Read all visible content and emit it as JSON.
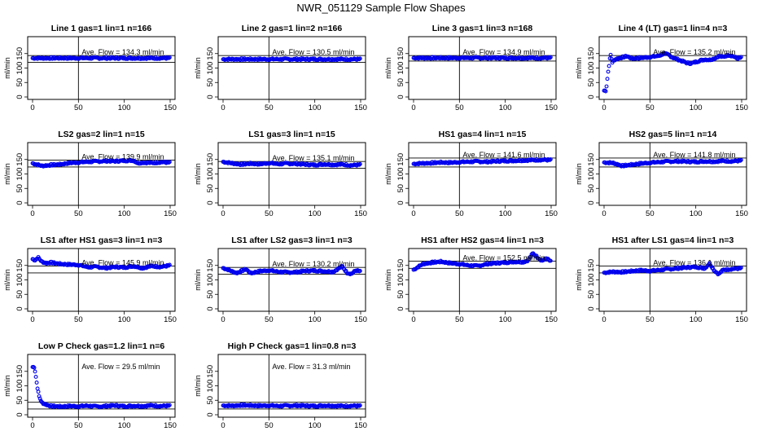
{
  "title": "NWR_051129  Sample Flow Shapes",
  "chart_data": [
    {
      "type": "scatter",
      "title": "Line 1 gas=1 lin=1 n=166",
      "ylabel": "ml/min",
      "xlim": [
        0,
        150
      ],
      "ylim": [
        0,
        200
      ],
      "xticks": [
        0,
        50,
        100,
        150
      ],
      "yticks": [
        0,
        50,
        100,
        150
      ],
      "ref_lines_y": [
        120,
        143
      ],
      "vline_x": 50,
      "ave_flow_label": "Ave. Flow =  134.3  ml/min",
      "series": [
        {
          "x": [
            0,
            150
          ],
          "y": [
            134.3,
            134.3
          ]
        }
      ]
    },
    {
      "type": "scatter",
      "title": "Line 2 gas=1 lin=2 n=166",
      "ylabel": "ml/min",
      "xlim": [
        0,
        150
      ],
      "ylim": [
        0,
        200
      ],
      "xticks": [
        0,
        50,
        100,
        150
      ],
      "yticks": [
        0,
        50,
        100,
        150
      ],
      "ref_lines_y": [
        120,
        143
      ],
      "vline_x": 50,
      "ave_flow_label": "Ave. Flow =  130.5  ml/min",
      "series": [
        {
          "x": [
            0,
            150
          ],
          "y": [
            130.5,
            130.5
          ]
        }
      ]
    },
    {
      "type": "scatter",
      "title": "Line 3 gas=1 lin=3 n=168",
      "ylabel": "ml/min",
      "xlim": [
        0,
        150
      ],
      "ylim": [
        0,
        200
      ],
      "xticks": [
        0,
        50,
        100,
        150
      ],
      "yticks": [
        0,
        50,
        100,
        150
      ],
      "ref_lines_y": [
        124,
        143
      ],
      "vline_x": 50,
      "ave_flow_label": "Ave. Flow =  134.9  ml/min",
      "series": [
        {
          "x": [
            0,
            150
          ],
          "y": [
            134.9,
            134.9
          ]
        }
      ]
    },
    {
      "type": "scatter",
      "title": "Line 4 (LT) gas=1 lin=4 n=3",
      "ylabel": "ml/min",
      "xlim": [
        0,
        150
      ],
      "ylim": [
        0,
        200
      ],
      "xticks": [
        0,
        50,
        100,
        150
      ],
      "yticks": [
        0,
        50,
        100,
        150
      ],
      "ref_lines_y": [
        124,
        143
      ],
      "vline_x": 50,
      "ave_flow_label": "Ave. Flow =  135.2  ml/min",
      "series": [
        {
          "x": [
            2,
            3,
            4,
            5,
            7,
            9,
            12,
            15,
            20,
            25,
            30,
            40,
            50,
            60,
            65,
            70,
            75,
            80,
            85,
            90,
            95,
            100,
            105,
            110,
            115,
            120,
            125,
            130,
            135,
            140,
            145,
            150
          ],
          "y": [
            22,
            45,
            75,
            100,
            148,
            120,
            130,
            133,
            137,
            141,
            133,
            135,
            138,
            142,
            150,
            146,
            136,
            130,
            124,
            118,
            116,
            121,
            126,
            130,
            128,
            133,
            141,
            138,
            145,
            142,
            133,
            136
          ]
        }
      ]
    },
    {
      "type": "scatter",
      "title": "LS2 gas=2 lin=1 n=15",
      "ylabel": "ml/min",
      "xlim": [
        0,
        150
      ],
      "ylim": [
        0,
        200
      ],
      "xticks": [
        0,
        50,
        100,
        150
      ],
      "yticks": [
        0,
        50,
        100,
        150
      ],
      "ref_lines_y": [
        124,
        148
      ],
      "vline_x": 50,
      "ave_flow_label": "Ave. Flow =  139.9  ml/min",
      "series": [
        {
          "x": [
            0,
            10,
            20,
            30,
            40,
            50,
            60,
            70,
            80,
            90,
            100,
            110,
            115,
            120,
            130,
            140,
            150
          ],
          "y": [
            137,
            128,
            131,
            133,
            138,
            140,
            142,
            143,
            145,
            144,
            146,
            147,
            137,
            140,
            138,
            141,
            139
          ]
        }
      ]
    },
    {
      "type": "scatter",
      "title": "LS1 gas=3 lin=1 n=15",
      "ylabel": "ml/min",
      "xlim": [
        0,
        150
      ],
      "ylim": [
        0,
        200
      ],
      "xticks": [
        0,
        50,
        100,
        150
      ],
      "yticks": [
        0,
        50,
        100,
        150
      ],
      "ref_lines_y": [
        120,
        143
      ],
      "vline_x": 50,
      "ave_flow_label": "Ave. Flow =  135.1  ml/min",
      "series": [
        {
          "x": [
            0,
            10,
            20,
            30,
            40,
            50,
            60,
            70,
            80,
            90,
            100,
            110,
            120,
            130,
            140,
            150
          ],
          "y": [
            142,
            137,
            133,
            136,
            134,
            138,
            134,
            136,
            135,
            133,
            131,
            134,
            132,
            133,
            130,
            132
          ]
        }
      ]
    },
    {
      "type": "scatter",
      "title": "HS1 gas=4 lin=1 n=15",
      "ylabel": "ml/min",
      "xlim": [
        0,
        150
      ],
      "ylim": [
        0,
        200
      ],
      "xticks": [
        0,
        50,
        100,
        150
      ],
      "yticks": [
        0,
        50,
        100,
        150
      ],
      "ref_lines_y": [
        124,
        155
      ],
      "vline_x": 50,
      "ave_flow_label": "Ave. Flow =  141.6  ml/min",
      "series": [
        {
          "x": [
            0,
            10,
            20,
            30,
            40,
            50,
            60,
            70,
            80,
            90,
            100,
            110,
            120,
            130,
            140,
            150
          ],
          "y": [
            135,
            137,
            138,
            140,
            139,
            141,
            142,
            143,
            142,
            144,
            145,
            146,
            147,
            148,
            149,
            148
          ]
        }
      ]
    },
    {
      "type": "scatter",
      "title": "HS2 gas=5 lin=1 n=14",
      "ylabel": "ml/min",
      "xlim": [
        0,
        150
      ],
      "ylim": [
        0,
        200
      ],
      "xticks": [
        0,
        50,
        100,
        150
      ],
      "yticks": [
        0,
        50,
        100,
        150
      ],
      "ref_lines_y": [
        124,
        155
      ],
      "vline_x": 50,
      "ave_flow_label": "Ave. Flow =  141.8  ml/min",
      "series": [
        {
          "x": [
            0,
            10,
            20,
            30,
            40,
            50,
            60,
            70,
            80,
            90,
            100,
            110,
            120,
            130,
            140,
            150
          ],
          "y": [
            140,
            138,
            128,
            132,
            136,
            139,
            141,
            143,
            144,
            143,
            142,
            144,
            143,
            145,
            144,
            146
          ]
        }
      ]
    },
    {
      "type": "scatter",
      "title": "LS1 after HS1 gas=3 lin=1 n=3",
      "ylabel": "ml/min",
      "xlim": [
        0,
        150
      ],
      "ylim": [
        0,
        200
      ],
      "xticks": [
        0,
        50,
        100,
        150
      ],
      "yticks": [
        0,
        50,
        100,
        150
      ],
      "ref_lines_y": [
        124,
        148
      ],
      "vline_x": 50,
      "ave_flow_label": "Ave. Flow =  145.9  ml/min",
      "series": [
        {
          "x": [
            0,
            3,
            6,
            10,
            15,
            20,
            30,
            40,
            50,
            60,
            70,
            80,
            90,
            100,
            110,
            120,
            130,
            140,
            150
          ],
          "y": [
            172,
            168,
            178,
            163,
            158,
            160,
            155,
            153,
            152,
            144,
            145,
            141,
            145,
            143,
            148,
            141,
            148,
            145,
            150
          ]
        }
      ]
    },
    {
      "type": "scatter",
      "title": "LS1 after LS2 gas=3 lin=1 n=3",
      "ylabel": "ml/min",
      "xlim": [
        0,
        150
      ],
      "ylim": [
        0,
        200
      ],
      "xticks": [
        0,
        50,
        100,
        150
      ],
      "yticks": [
        0,
        50,
        100,
        150
      ],
      "ref_lines_y": [
        120,
        143
      ],
      "vline_x": 50,
      "ave_flow_label": "Ave. Flow =  130.2  ml/min",
      "series": [
        {
          "x": [
            0,
            5,
            10,
            15,
            20,
            25,
            30,
            40,
            50,
            60,
            70,
            80,
            90,
            100,
            110,
            120,
            130,
            135,
            140,
            145,
            150
          ],
          "y": [
            141,
            136,
            129,
            124,
            131,
            137,
            123,
            130,
            133,
            128,
            126,
            127,
            131,
            132,
            130,
            128,
            147,
            125,
            121,
            133,
            128
          ]
        }
      ]
    },
    {
      "type": "scatter",
      "title": "HS1 after HS2 gas=4 lin=1 n=3",
      "ylabel": "ml/min",
      "xlim": [
        0,
        150
      ],
      "ylim": [
        0,
        200
      ],
      "xticks": [
        0,
        50,
        100,
        150
      ],
      "yticks": [
        0,
        50,
        100,
        150
      ],
      "ref_lines_y": [
        140,
        165
      ],
      "vline_x": 50,
      "ave_flow_label": "Ave. Flow =  152.5  ml/min",
      "series": [
        {
          "x": [
            0,
            5,
            10,
            20,
            30,
            40,
            50,
            60,
            70,
            80,
            90,
            100,
            110,
            120,
            125,
            130,
            140,
            145,
            150
          ],
          "y": [
            135,
            145,
            155,
            160,
            163,
            158,
            155,
            150,
            148,
            155,
            158,
            160,
            163,
            162,
            168,
            192,
            166,
            175,
            162
          ]
        }
      ]
    },
    {
      "type": "scatter",
      "title": "HS1 after LS1 gas=4 lin=1 n=3",
      "ylabel": "ml/min",
      "xlim": [
        0,
        150
      ],
      "ylim": [
        0,
        200
      ],
      "xticks": [
        0,
        50,
        100,
        150
      ],
      "yticks": [
        0,
        50,
        100,
        150
      ],
      "ref_lines_y": [
        124,
        148
      ],
      "vline_x": 50,
      "ave_flow_label": "Ave. Flow =  136.1  ml/min",
      "series": [
        {
          "x": [
            0,
            10,
            20,
            30,
            40,
            50,
            60,
            70,
            80,
            90,
            100,
            110,
            115,
            120,
            125,
            130,
            140,
            150
          ],
          "y": [
            125,
            128,
            127,
            130,
            133,
            131,
            134,
            137,
            140,
            143,
            145,
            140,
            158,
            133,
            120,
            135,
            138,
            140
          ]
        }
      ]
    },
    {
      "type": "scatter",
      "title": "Low P Check gas=1.2 lin=1 n=6",
      "ylabel": "ml/min",
      "xlim": [
        0,
        150
      ],
      "ylim": [
        0,
        200
      ],
      "xticks": [
        0,
        50,
        100,
        150
      ],
      "yticks": [
        0,
        50,
        100,
        150
      ],
      "ref_lines_y": [
        20,
        43
      ],
      "vline_x": 50,
      "ave_flow_label": "Ave. Flow =  29.5  ml/min",
      "series": [
        {
          "x": [
            2,
            3,
            5,
            7,
            10,
            15,
            20,
            30,
            40,
            50,
            60,
            70,
            80,
            90,
            100,
            110,
            120,
            130,
            140,
            150
          ],
          "y": [
            165,
            145,
            100,
            65,
            42,
            35,
            30,
            28,
            30,
            29,
            31,
            28,
            30,
            32,
            29,
            31,
            30,
            32,
            30,
            31
          ]
        }
      ]
    },
    {
      "type": "scatter",
      "title": "High P Check gas=1 lin=0.8 n=3",
      "ylabel": "ml/min",
      "xlim": [
        0,
        150
      ],
      "ylim": [
        0,
        200
      ],
      "xticks": [
        0,
        50,
        100,
        150
      ],
      "yticks": [
        0,
        50,
        100,
        150
      ],
      "ref_lines_y": [
        20,
        43
      ],
      "vline_x": 50,
      "ave_flow_label": "Ave. Flow =  31.3  ml/min",
      "series": [
        {
          "x": [
            0,
            10,
            20,
            30,
            40,
            50,
            60,
            70,
            80,
            90,
            100,
            110,
            120,
            130,
            140,
            150
          ],
          "y": [
            32,
            31,
            33,
            32,
            31,
            32,
            30,
            31,
            32,
            31,
            30,
            32,
            31,
            30,
            31,
            30
          ]
        }
      ]
    }
  ],
  "colors": {
    "points": "#0000ee",
    "lines": "#000000",
    "background": "#ffffff"
  }
}
